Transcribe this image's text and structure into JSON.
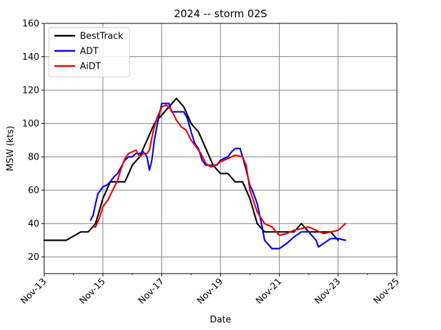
{
  "chart_data": {
    "type": "line",
    "title": "2024 -- storm 02S",
    "xlabel": "Date",
    "ylabel": "MSW (kts)",
    "xlim": [
      "2024-11-13",
      "2024-11-25"
    ],
    "ylim": [
      10,
      160
    ],
    "x_ticks": [
      {
        "date": "2024-11-13",
        "label": "Nov-13"
      },
      {
        "date": "2024-11-15",
        "label": "Nov-15"
      },
      {
        "date": "2024-11-17",
        "label": "Nov-17"
      },
      {
        "date": "2024-11-19",
        "label": "Nov-19"
      },
      {
        "date": "2024-11-21",
        "label": "Nov-21"
      },
      {
        "date": "2024-11-23",
        "label": "Nov-23"
      },
      {
        "date": "2024-11-25",
        "label": "Nov-25"
      }
    ],
    "x_minor_ticks": [
      "2024-11-14",
      "2024-11-16",
      "2024-11-18",
      "2024-11-20",
      "2024-11-22",
      "2024-11-24"
    ],
    "y_ticks": [
      20,
      40,
      60,
      80,
      100,
      120,
      140,
      160
    ],
    "grid": true,
    "legend": "top-left",
    "series": [
      {
        "name": "BestTrack",
        "color": "#000000",
        "points": [
          [
            "2024-11-13 00:00",
            30
          ],
          [
            "2024-11-13 18:00",
            30
          ],
          [
            "2024-11-14 06:00",
            35
          ],
          [
            "2024-11-14 12:00",
            35
          ],
          [
            "2024-11-14 18:00",
            40
          ],
          [
            "2024-11-15 00:00",
            55
          ],
          [
            "2024-11-15 06:00",
            65
          ],
          [
            "2024-11-15 12:00",
            65
          ],
          [
            "2024-11-15 18:00",
            65
          ],
          [
            "2024-11-16 00:00",
            75
          ],
          [
            "2024-11-16 06:00",
            80
          ],
          [
            "2024-11-16 12:00",
            90
          ],
          [
            "2024-11-16 18:00",
            100
          ],
          [
            "2024-11-17 00:00",
            105
          ],
          [
            "2024-11-17 06:00",
            110
          ],
          [
            "2024-11-17 12:00",
            115
          ],
          [
            "2024-11-17 18:00",
            110
          ],
          [
            "2024-11-18 00:00",
            100
          ],
          [
            "2024-11-18 06:00",
            95
          ],
          [
            "2024-11-18 12:00",
            85
          ],
          [
            "2024-11-18 18:00",
            75
          ],
          [
            "2024-11-19 00:00",
            70
          ],
          [
            "2024-11-19 06:00",
            70
          ],
          [
            "2024-11-19 12:00",
            65
          ],
          [
            "2024-11-19 18:00",
            65
          ],
          [
            "2024-11-20 00:00",
            55
          ],
          [
            "2024-11-20 06:00",
            40
          ],
          [
            "2024-11-20 12:00",
            35
          ],
          [
            "2024-11-21 00:00",
            35
          ],
          [
            "2024-11-21 12:00",
            35
          ],
          [
            "2024-11-21 18:00",
            40
          ],
          [
            "2024-11-22 00:00",
            35
          ],
          [
            "2024-11-22 12:00",
            35
          ],
          [
            "2024-11-22 18:00",
            35
          ],
          [
            "2024-11-23 00:00",
            30
          ]
        ]
      },
      {
        "name": "ADT",
        "color": "#0000ee",
        "points": [
          [
            "2024-11-14 14:00",
            42
          ],
          [
            "2024-11-14 16:00",
            45
          ],
          [
            "2024-11-14 18:00",
            52
          ],
          [
            "2024-11-14 20:00",
            58
          ],
          [
            "2024-11-14 22:00",
            60
          ],
          [
            "2024-11-15 00:00",
            62
          ],
          [
            "2024-11-15 03:00",
            63
          ],
          [
            "2024-11-15 06:00",
            65
          ],
          [
            "2024-11-15 09:00",
            68
          ],
          [
            "2024-11-15 12:00",
            70
          ],
          [
            "2024-11-15 15:00",
            74
          ],
          [
            "2024-11-15 18:00",
            78
          ],
          [
            "2024-11-15 21:00",
            80
          ],
          [
            "2024-11-16 00:00",
            80
          ],
          [
            "2024-11-16 03:00",
            82
          ],
          [
            "2024-11-16 06:00",
            82
          ],
          [
            "2024-11-16 09:00",
            83
          ],
          [
            "2024-11-16 12:00",
            80
          ],
          [
            "2024-11-16 14:00",
            72
          ],
          [
            "2024-11-16 16:00",
            78
          ],
          [
            "2024-11-16 18:00",
            90
          ],
          [
            "2024-11-16 20:00",
            98
          ],
          [
            "2024-11-16 22:00",
            105
          ],
          [
            "2024-11-17 00:00",
            112
          ],
          [
            "2024-11-17 06:00",
            112
          ],
          [
            "2024-11-17 08:00",
            107
          ],
          [
            "2024-11-17 18:00",
            107
          ],
          [
            "2024-11-17 21:00",
            103
          ],
          [
            "2024-11-18 00:00",
            95
          ],
          [
            "2024-11-18 03:00",
            88
          ],
          [
            "2024-11-18 06:00",
            85
          ],
          [
            "2024-11-18 09:00",
            78
          ],
          [
            "2024-11-18 12:00",
            75
          ],
          [
            "2024-11-18 18:00",
            75
          ],
          [
            "2024-11-18 21:00",
            75
          ],
          [
            "2024-11-19 00:00",
            78
          ],
          [
            "2024-11-19 06:00",
            80
          ],
          [
            "2024-11-19 09:00",
            83
          ],
          [
            "2024-11-19 12:00",
            85
          ],
          [
            "2024-11-19 16:00",
            85
          ],
          [
            "2024-11-19 18:00",
            80
          ],
          [
            "2024-11-19 21:00",
            72
          ],
          [
            "2024-11-20 00:00",
            63
          ],
          [
            "2024-11-20 03:00",
            58
          ],
          [
            "2024-11-20 06:00",
            52
          ],
          [
            "2024-11-20 08:00",
            45
          ],
          [
            "2024-11-20 10:00",
            38
          ],
          [
            "2024-11-20 12:00",
            30
          ],
          [
            "2024-11-20 18:00",
            25
          ],
          [
            "2024-11-21 00:00",
            25
          ],
          [
            "2024-11-21 06:00",
            28
          ],
          [
            "2024-11-21 12:00",
            32
          ],
          [
            "2024-11-21 18:00",
            35
          ],
          [
            "2024-11-22 00:00",
            35
          ],
          [
            "2024-11-22 06:00",
            30
          ],
          [
            "2024-11-22 08:00",
            26
          ],
          [
            "2024-11-22 12:00",
            28
          ],
          [
            "2024-11-22 18:00",
            31
          ],
          [
            "2024-11-23 00:00",
            31
          ],
          [
            "2024-11-23 06:00",
            30
          ]
        ]
      },
      {
        "name": "AiDT",
        "color": "#ee0000",
        "points": [
          [
            "2024-11-14 16:00",
            38
          ],
          [
            "2024-11-14 18:00",
            38
          ],
          [
            "2024-11-14 21:00",
            43
          ],
          [
            "2024-11-15 00:00",
            50
          ],
          [
            "2024-11-15 04:00",
            54
          ],
          [
            "2024-11-15 08:00",
            60
          ],
          [
            "2024-11-15 12:00",
            66
          ],
          [
            "2024-11-15 15:00",
            73
          ],
          [
            "2024-11-15 18:00",
            79
          ],
          [
            "2024-11-15 21:00",
            82
          ],
          [
            "2024-11-16 00:00",
            83
          ],
          [
            "2024-11-16 03:00",
            84
          ],
          [
            "2024-11-16 06:00",
            80
          ],
          [
            "2024-11-16 09:00",
            82
          ],
          [
            "2024-11-16 12:00",
            82
          ],
          [
            "2024-11-16 14:00",
            84
          ],
          [
            "2024-11-16 17:00",
            95
          ],
          [
            "2024-11-16 20:00",
            103
          ],
          [
            "2024-11-17 00:00",
            110
          ],
          [
            "2024-11-17 04:00",
            111
          ],
          [
            "2024-11-17 08:00",
            108
          ],
          [
            "2024-11-17 12:00",
            102
          ],
          [
            "2024-11-17 16:00",
            98
          ],
          [
            "2024-11-17 20:00",
            96
          ],
          [
            "2024-11-18 00:00",
            90
          ],
          [
            "2024-11-18 04:00",
            86
          ],
          [
            "2024-11-18 08:00",
            82
          ],
          [
            "2024-11-18 12:00",
            76
          ],
          [
            "2024-11-18 16:00",
            74
          ],
          [
            "2024-11-18 20:00",
            75
          ],
          [
            "2024-11-19 00:00",
            77
          ],
          [
            "2024-11-19 06:00",
            79
          ],
          [
            "2024-11-19 12:00",
            81
          ],
          [
            "2024-11-19 18:00",
            80
          ],
          [
            "2024-11-19 21:00",
            75
          ],
          [
            "2024-11-20 00:00",
            60
          ],
          [
            "2024-11-20 06:00",
            47
          ],
          [
            "2024-11-20 12:00",
            40
          ],
          [
            "2024-11-20 18:00",
            38
          ],
          [
            "2024-11-21 00:00",
            33
          ],
          [
            "2024-11-21 06:00",
            34
          ],
          [
            "2024-11-21 12:00",
            36
          ],
          [
            "2024-11-22 00:00",
            38
          ],
          [
            "2024-11-22 06:00",
            36
          ],
          [
            "2024-11-22 12:00",
            34
          ],
          [
            "2024-11-22 18:00",
            35
          ],
          [
            "2024-11-23 00:00",
            36
          ],
          [
            "2024-11-23 06:00",
            40
          ]
        ]
      }
    ]
  }
}
